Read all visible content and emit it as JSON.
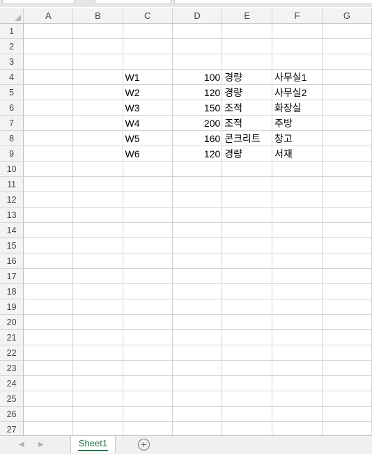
{
  "columns": [
    "A",
    "B",
    "C",
    "D",
    "E",
    "F",
    "G"
  ],
  "rows": [
    {
      "num": "1",
      "cells": [
        "",
        "",
        "",
        "",
        "",
        "",
        ""
      ]
    },
    {
      "num": "2",
      "cells": [
        "",
        "",
        "",
        "",
        "",
        "",
        ""
      ]
    },
    {
      "num": "3",
      "cells": [
        "",
        "",
        "",
        "",
        "",
        "",
        ""
      ]
    },
    {
      "num": "4",
      "cells": [
        "",
        "",
        "W1",
        "100",
        "경량",
        "사무실1",
        ""
      ]
    },
    {
      "num": "5",
      "cells": [
        "",
        "",
        "W2",
        "120",
        "경량",
        "사무실2",
        ""
      ]
    },
    {
      "num": "6",
      "cells": [
        "",
        "",
        "W3",
        "150",
        "조적",
        "화장실",
        ""
      ]
    },
    {
      "num": "7",
      "cells": [
        "",
        "",
        "W4",
        "200",
        "조적",
        "주방",
        ""
      ]
    },
    {
      "num": "8",
      "cells": [
        "",
        "",
        "W5",
        "160",
        "콘크리트",
        "창고",
        ""
      ]
    },
    {
      "num": "9",
      "cells": [
        "",
        "",
        "W6",
        "120",
        "경량",
        "서재",
        ""
      ]
    },
    {
      "num": "10",
      "cells": [
        "",
        "",
        "",
        "",
        "",
        "",
        ""
      ]
    },
    {
      "num": "11",
      "cells": [
        "",
        "",
        "",
        "",
        "",
        "",
        ""
      ]
    },
    {
      "num": "12",
      "cells": [
        "",
        "",
        "",
        "",
        "",
        "",
        ""
      ]
    },
    {
      "num": "13",
      "cells": [
        "",
        "",
        "",
        "",
        "",
        "",
        ""
      ]
    },
    {
      "num": "14",
      "cells": [
        "",
        "",
        "",
        "",
        "",
        "",
        ""
      ]
    },
    {
      "num": "15",
      "cells": [
        "",
        "",
        "",
        "",
        "",
        "",
        ""
      ]
    },
    {
      "num": "16",
      "cells": [
        "",
        "",
        "",
        "",
        "",
        "",
        ""
      ]
    },
    {
      "num": "17",
      "cells": [
        "",
        "",
        "",
        "",
        "",
        "",
        ""
      ]
    },
    {
      "num": "18",
      "cells": [
        "",
        "",
        "",
        "",
        "",
        "",
        ""
      ]
    },
    {
      "num": "19",
      "cells": [
        "",
        "",
        "",
        "",
        "",
        "",
        ""
      ]
    },
    {
      "num": "20",
      "cells": [
        "",
        "",
        "",
        "",
        "",
        "",
        ""
      ]
    },
    {
      "num": "21",
      "cells": [
        "",
        "",
        "",
        "",
        "",
        "",
        ""
      ]
    },
    {
      "num": "22",
      "cells": [
        "",
        "",
        "",
        "",
        "",
        "",
        ""
      ]
    },
    {
      "num": "23",
      "cells": [
        "",
        "",
        "",
        "",
        "",
        "",
        ""
      ]
    },
    {
      "num": "24",
      "cells": [
        "",
        "",
        "",
        "",
        "",
        "",
        ""
      ]
    },
    {
      "num": "25",
      "cells": [
        "",
        "",
        "",
        "",
        "",
        "",
        ""
      ]
    },
    {
      "num": "26",
      "cells": [
        "",
        "",
        "",
        "",
        "",
        "",
        ""
      ]
    },
    {
      "num": "27",
      "cells": [
        "",
        "",
        "",
        "",
        "",
        "",
        ""
      ]
    }
  ],
  "sheet_tabs": [
    "Sheet1"
  ],
  "colors": {
    "accent": "#217346",
    "header_bg": "#f3f3f3",
    "gridline": "#d4d4d4"
  },
  "icons": {
    "add_sheet": "plus-circle-icon",
    "nav_prev": "triangle-left-icon",
    "nav_next": "triangle-right-icon"
  }
}
